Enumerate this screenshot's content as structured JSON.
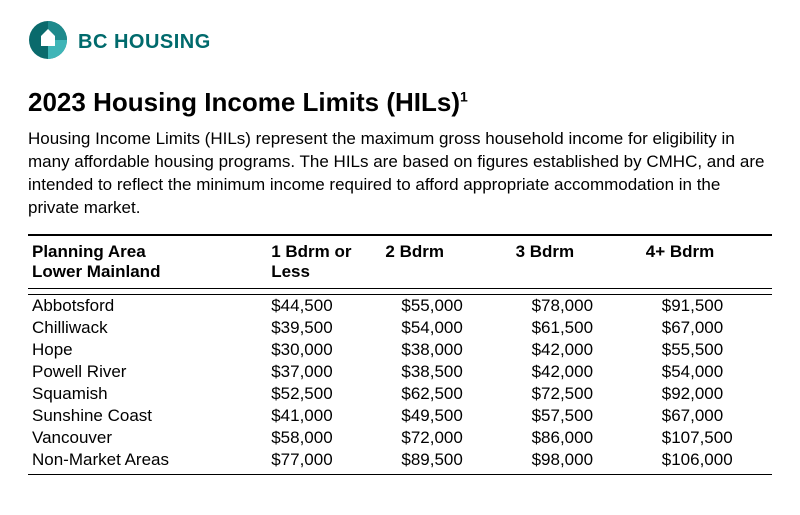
{
  "brand": {
    "name": "BC HOUSING",
    "logo_colors": {
      "dark": "#0a6a6c",
      "mid": "#1f8a8c",
      "light": "#3fb5b7",
      "house": "#ffffff"
    }
  },
  "title": "2023 Housing Income Limits (HILs)",
  "title_super": "1",
  "description": "Housing Income Limits (HILs) represent the maximum gross household income for eligibility in many affordable housing programs. The HILs are based on figures established by CMHC, and are intended to reflect the minimum income required to afford appropriate accommodation in the private market.",
  "table": {
    "header_area_line1": "Planning Area",
    "header_area_line2": "Lower Mainland",
    "header_1br_line1": "1 Bdrm or",
    "header_1br_line2": "Less",
    "header_2br": "2 Bdrm",
    "header_3br": "3 Bdrm",
    "header_4br": "4+ Bdrm",
    "rows": [
      {
        "area": "Abbotsford",
        "b1": "$44,500",
        "b2": "$55,000",
        "b3": "$78,000",
        "b4": "$91,500"
      },
      {
        "area": "Chilliwack",
        "b1": "$39,500",
        "b2": "$54,000",
        "b3": "$61,500",
        "b4": "$67,000"
      },
      {
        "area": "Hope",
        "b1": "$30,000",
        "b2": "$38,000",
        "b3": "$42,000",
        "b4": "$55,500"
      },
      {
        "area": "Powell River",
        "b1": "$37,000",
        "b2": "$38,500",
        "b3": "$42,000",
        "b4": "$54,000"
      },
      {
        "area": "Squamish",
        "b1": "$52,500",
        "b2": "$62,500",
        "b3": "$72,500",
        "b4": "$92,000"
      },
      {
        "area": "Sunshine Coast",
        "b1": "$41,000",
        "b2": "$49,500",
        "b3": "$57,500",
        "b4": "$67,000"
      },
      {
        "area": "Vancouver",
        "b1": "$58,000",
        "b2": "$72,000",
        "b3": "$86,000",
        "b4": "$107,500"
      },
      {
        "area": "Non-Market Areas",
        "b1": "$77,000",
        "b2": "$89,500",
        "b3": "$98,000",
        "b4": "$106,000"
      }
    ],
    "styling": {
      "font_size_pt": 13,
      "border_color": "#000000",
      "text_color": "#000000",
      "background_color": "#ffffff",
      "column_widths_pct": [
        30,
        17.5,
        17.5,
        17.5,
        17.5
      ],
      "value_alignment": "left-indented"
    }
  }
}
